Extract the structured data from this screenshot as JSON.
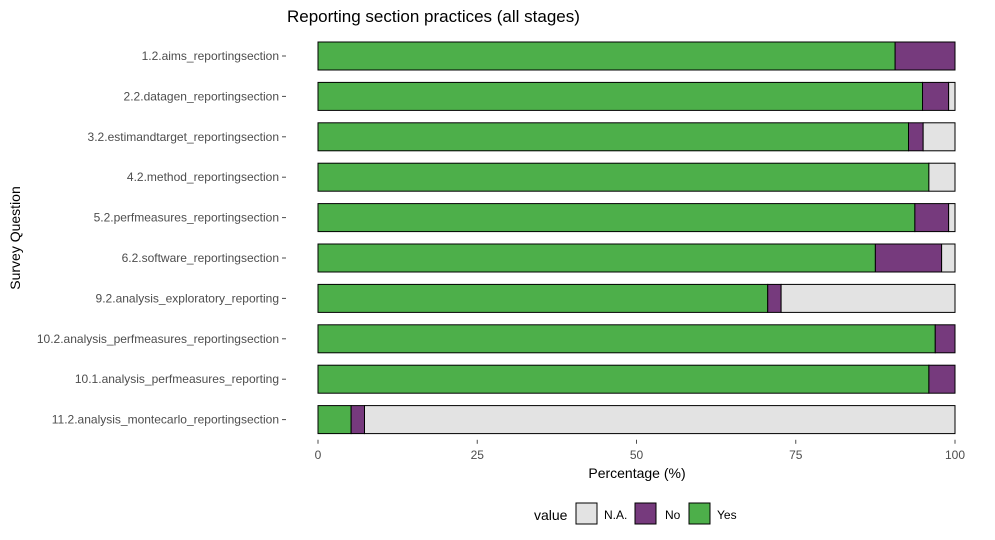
{
  "chart_data": {
    "type": "bar",
    "orientation": "horizontal",
    "stacked": true,
    "title": "Reporting section practices (all stages)",
    "xlabel": "Percentage (%)",
    "ylabel": "Survey Question",
    "xlim": [
      0,
      100
    ],
    "xticks": [
      0,
      25,
      50,
      75,
      100
    ],
    "grid": false,
    "legend_position": "bottom",
    "legend_title": "value",
    "categories": [
      "1.2.aims_reportingsection",
      "2.2.datagen_reportingsection",
      "3.2.estimandtarget_reportingsection",
      "4.2.method_reportingsection",
      "5.2.perfmeasures_reportingsection",
      "6.2.software_reportingsection",
      "9.2.analysis_exploratory_reporting",
      "10.2.analysis_perfmeasures_reportingsection",
      "10.1.analysis_perfmeasures_reporting",
      "11.2.analysis_montecarlo_reportingsection"
    ],
    "series": [
      {
        "name": "Yes",
        "color": "#4daf4a",
        "values": [
          90.6,
          94.9,
          92.7,
          95.9,
          93.7,
          87.5,
          70.6,
          96.9,
          95.9,
          5.2
        ]
      },
      {
        "name": "No",
        "color": "#763a7d",
        "values": [
          9.4,
          4.1,
          2.3,
          0.0,
          5.3,
          10.4,
          2.1,
          3.1,
          4.1,
          2.1
        ]
      },
      {
        "name": "N.A.",
        "color": "#e3e3e3",
        "values": [
          0.0,
          1.0,
          5.0,
          4.1,
          1.0,
          2.1,
          27.3,
          0.0,
          0.0,
          92.7
        ]
      }
    ],
    "legend_order": [
      "N.A.",
      "No",
      "Yes"
    ]
  }
}
